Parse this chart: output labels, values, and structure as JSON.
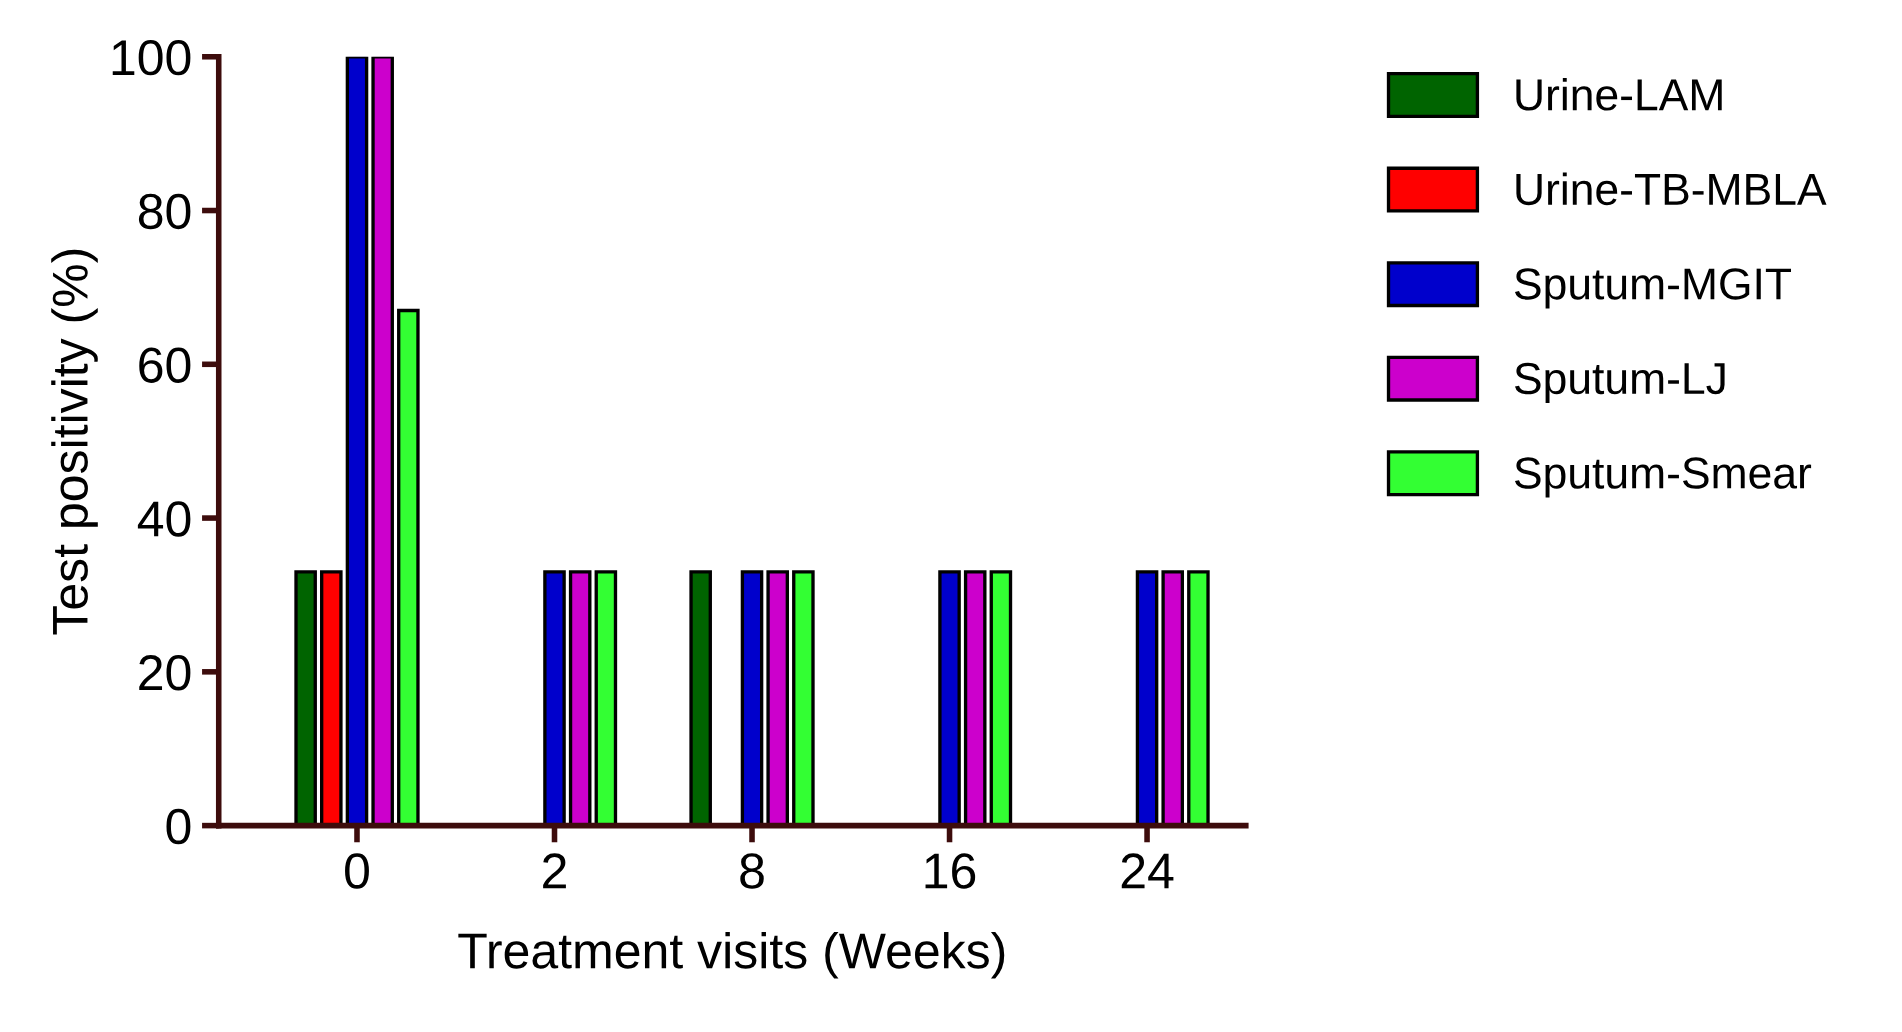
{
  "chart_data": {
    "type": "bar",
    "xlabel": "Treatment visits (Weeks)",
    "ylabel": "Test positivity (%)",
    "categories": [
      "0",
      "2",
      "8",
      "16",
      "24"
    ],
    "series": [
      {
        "name": "Urine-LAM",
        "color": "#006400",
        "values": [
          33,
          0,
          33,
          0,
          0
        ]
      },
      {
        "name": "Urine-TB-MBLA",
        "color": "#ff0000",
        "values": [
          33,
          0,
          0,
          0,
          0
        ]
      },
      {
        "name": "Sputum-MGIT",
        "color": "#0000cc",
        "values": [
          100,
          33,
          33,
          33,
          33
        ]
      },
      {
        "name": "Sputum-LJ",
        "color": "#cc00cc",
        "values": [
          100,
          33,
          33,
          33,
          33
        ]
      },
      {
        "name": "Sputum-Smear",
        "color": "#33ff33",
        "values": [
          67,
          33,
          33,
          33,
          33
        ]
      }
    ],
    "ylim": [
      0,
      100
    ],
    "yticks": [
      0,
      20,
      40,
      60,
      80,
      100
    ],
    "grid": false,
    "legend": "right"
  }
}
